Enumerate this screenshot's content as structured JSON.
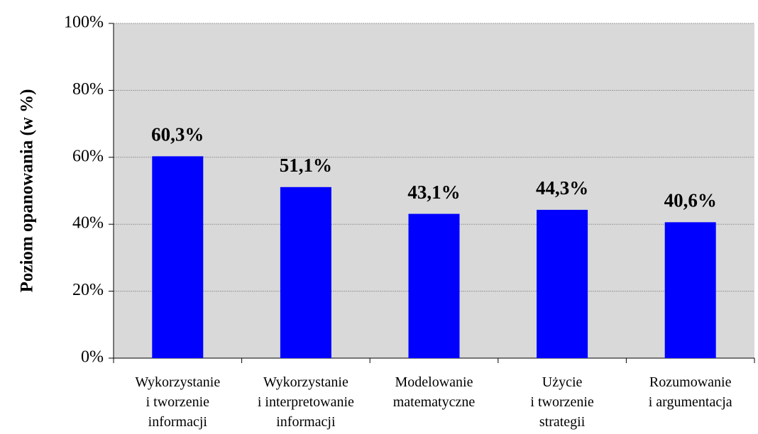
{
  "chart_data": {
    "type": "bar",
    "y_label": "Poziom opanowania (w %)",
    "categories": [
      "Wykorzystanie\ni tworzenie\ninformacji",
      "Wykorzystanie\ni interpretowanie\ninformacji",
      "Modelowanie\nmatematyczne",
      "Użycie\ni tworzenie\nstrategii",
      "Rozumowanie\ni argumentacja"
    ],
    "values": [
      60.3,
      51.1,
      43.1,
      44.3,
      40.6
    ],
    "value_labels": [
      "60,3%",
      "51,1%",
      "43,1%",
      "44,3%",
      "40,6%"
    ],
    "color": "#0000ff",
    "ylim": [
      0,
      100
    ],
    "yticks": [
      {
        "value": 0,
        "label": "0%"
      },
      {
        "value": 20,
        "label": "20%"
      },
      {
        "value": 40,
        "label": "40%"
      },
      {
        "value": 60,
        "label": "60%"
      },
      {
        "value": 80,
        "label": "80%"
      },
      {
        "value": 100,
        "label": "100%"
      }
    ],
    "grid": true
  }
}
